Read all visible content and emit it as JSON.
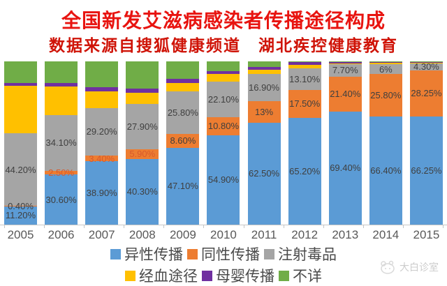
{
  "title": "全国新发艾滋病感染者传播途径构成",
  "subtitle": "数据来源自搜狐健康频道　湖北疾控健康教育",
  "watermark": {
    "text": "大白诊室"
  },
  "colors": {
    "title_red": "#e81410",
    "subtitle_red": "#cf1307",
    "axis_gray": "#c6c6c6",
    "label_gray": "#3f3f3f",
    "year_gray": "#595959"
  },
  "chart_data": {
    "type": "bar",
    "stacked": true,
    "percent": true,
    "ylim": [
      0,
      100
    ],
    "grid": false,
    "legend_position": "bottom",
    "categories": [
      "2005",
      "2006",
      "2007",
      "2008",
      "2009",
      "2010",
      "2011",
      "2012",
      "2013",
      "2014",
      "2015"
    ],
    "series": [
      {
        "key": "heterosexual",
        "name": "异性传播",
        "color": "#5B9BD5",
        "values": [
          11.2,
          30.6,
          38.9,
          40.3,
          47.1,
          54.9,
          62.5,
          65.2,
          69.4,
          66.4,
          66.25
        ],
        "labels": [
          "11.20%",
          "30.60%",
          "38.90%",
          "40.30%",
          "47.10%",
          "54.90%",
          "62.50%",
          "65.20%",
          "69.40%",
          "66.40%",
          "66.25%"
        ]
      },
      {
        "key": "homosexual",
        "name": "同性传播",
        "color": "#ED7D31",
        "values": [
          0.4,
          2.5,
          3.4,
          5.9,
          8.6,
          10.8,
          13,
          17.5,
          21.4,
          25.8,
          28.25
        ],
        "labels": [
          "0.40%",
          "2.50%",
          "3.40%",
          "5.90%",
          "8.60%",
          "10.80%",
          "13%",
          "17.50%",
          "21.40%",
          "25.80%",
          "28.25%"
        ],
        "label_color_overrides": {
          "1": "#d85a2c",
          "2": "#d85a2c",
          "3": "#d85a2c"
        }
      },
      {
        "key": "injection-drug",
        "name": "注射毒品",
        "color": "#A5A5A5",
        "values": [
          44.2,
          34.1,
          29.2,
          27.9,
          25.8,
          22.1,
          16.9,
          13.1,
          7.7,
          6,
          4.3
        ],
        "labels": [
          "44.20%",
          "34.10%",
          "29.20%",
          "27.90%",
          "25.80%",
          "22.10%",
          "16.90%",
          "13.10%",
          "7.70%",
          "6%",
          "4.30%"
        ]
      },
      {
        "key": "blood-route",
        "name": "经血途径",
        "color": "#FFC000",
        "values": [
          29.2,
          17.5,
          10.0,
          6.8,
          5.4,
          4.4,
          2.4,
          2.1,
          0.4,
          0.8,
          0.4
        ],
        "labels": null
      },
      {
        "key": "mother-to-child",
        "name": "母婴传播",
        "color": "#7030A0",
        "values": [
          1.8,
          2.1,
          2.6,
          2.4,
          2.3,
          1.9,
          1.8,
          1.7,
          0.6,
          0.5,
          0.4
        ],
        "labels": null
      },
      {
        "key": "unknown",
        "name": "不详",
        "color": "#70AD47",
        "values": [
          13.2,
          13.2,
          15.9,
          16.7,
          10.8,
          5.9,
          3.4,
          0.4,
          0.5,
          0.5,
          0.4
        ],
        "labels": null
      }
    ]
  }
}
